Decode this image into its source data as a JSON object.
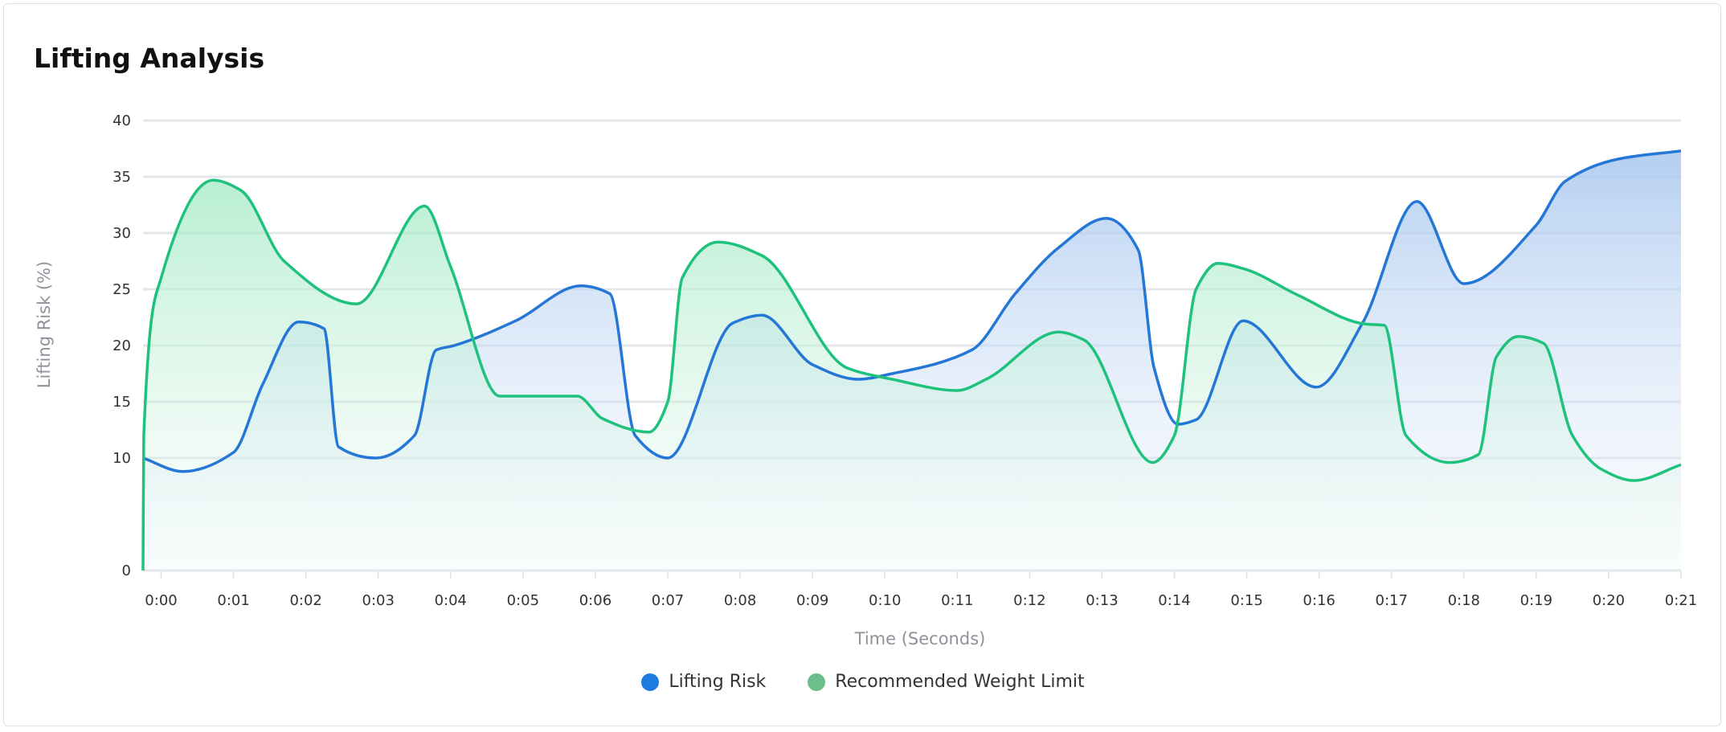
{
  "title": "Lifting Analysis",
  "chart_data": {
    "type": "area",
    "title": "Lifting Analysis",
    "xlabel": "Time (Seconds)",
    "ylabel": "Lifting Risk (%)",
    "x_unit": "seconds",
    "xlim": [
      -0.25,
      21
    ],
    "ylim": [
      0,
      40
    ],
    "x_ticks": [
      "0:00",
      "0:01",
      "0:02",
      "0:03",
      "0:04",
      "0:05",
      "0:06",
      "0:07",
      "0:08",
      "0:09",
      "0:10",
      "0:11",
      "0:12",
      "0:13",
      "0:14",
      "0:15",
      "0:16",
      "0:17",
      "0:18",
      "0:19",
      "0:20",
      "0:21"
    ],
    "y_ticks": [
      0,
      10,
      15,
      20,
      25,
      30,
      35,
      40
    ],
    "grid": true,
    "legend_position": "bottom",
    "series": [
      {
        "name": "Lifting Risk",
        "color": "#2477d6",
        "legend_color": "#1f7ae0",
        "points": [
          [
            -0.25,
            10
          ],
          [
            0.3,
            8.8
          ],
          [
            1.0,
            10.5
          ],
          [
            1.4,
            16.5
          ],
          [
            1.9,
            22.1
          ],
          [
            2.25,
            21.5
          ],
          [
            2.45,
            11
          ],
          [
            2.97,
            10
          ],
          [
            3.5,
            12
          ],
          [
            3.8,
            19.6
          ],
          [
            4.05,
            20
          ],
          [
            4.9,
            22.2
          ],
          [
            5.8,
            25.3
          ],
          [
            6.2,
            24.6
          ],
          [
            6.55,
            12
          ],
          [
            7.0,
            10
          ],
          [
            7.9,
            22
          ],
          [
            8.3,
            22.7
          ],
          [
            9.0,
            18.3
          ],
          [
            9.63,
            17
          ],
          [
            10.1,
            17.5
          ],
          [
            11.2,
            19.6
          ],
          [
            11.8,
            24.6
          ],
          [
            12.4,
            28.7
          ],
          [
            13.06,
            31.3
          ],
          [
            13.5,
            28.5
          ],
          [
            13.72,
            18
          ],
          [
            14.05,
            13
          ],
          [
            14.3,
            13.4
          ],
          [
            14.95,
            22.2
          ],
          [
            15.96,
            16.3
          ],
          [
            16.6,
            22
          ],
          [
            17.35,
            32.8
          ],
          [
            18.0,
            25.5
          ],
          [
            19.0,
            30.7
          ],
          [
            19.4,
            34.6
          ],
          [
            20.15,
            36.6
          ],
          [
            21,
            37.3
          ]
        ]
      },
      {
        "name": "Recommended Weight Limit",
        "color": "#1ec27c",
        "legend_color": "#6cbf8a",
        "points": [
          [
            -0.25,
            0
          ],
          [
            -0.24,
            12
          ],
          [
            0.0,
            26
          ],
          [
            0.72,
            34.7
          ],
          [
            1.1,
            33.8
          ],
          [
            1.7,
            27.5
          ],
          [
            2.7,
            23.7
          ],
          [
            3.64,
            32.4
          ],
          [
            4.0,
            27
          ],
          [
            4.68,
            15.5
          ],
          [
            5.75,
            15.5
          ],
          [
            6.1,
            13.5
          ],
          [
            6.74,
            12.3
          ],
          [
            7.0,
            15
          ],
          [
            7.2,
            26
          ],
          [
            7.7,
            29.2
          ],
          [
            8.3,
            28
          ],
          [
            9.48,
            18
          ],
          [
            10.1,
            17
          ],
          [
            11.0,
            16
          ],
          [
            11.4,
            17
          ],
          [
            12.4,
            21.2
          ],
          [
            12.75,
            20.5
          ],
          [
            13.7,
            9.6
          ],
          [
            14.0,
            12
          ],
          [
            14.3,
            25
          ],
          [
            14.6,
            27.3
          ],
          [
            14.97,
            26.8
          ],
          [
            15.7,
            24.5
          ],
          [
            16.65,
            21.9
          ],
          [
            16.9,
            21.8
          ],
          [
            17.2,
            12
          ],
          [
            17.8,
            9.6
          ],
          [
            18.2,
            10.3
          ],
          [
            18.45,
            19
          ],
          [
            18.75,
            20.8
          ],
          [
            19.1,
            20.2
          ],
          [
            19.5,
            12
          ],
          [
            19.9,
            9
          ],
          [
            20.35,
            8
          ],
          [
            21,
            9.4
          ]
        ]
      }
    ]
  }
}
